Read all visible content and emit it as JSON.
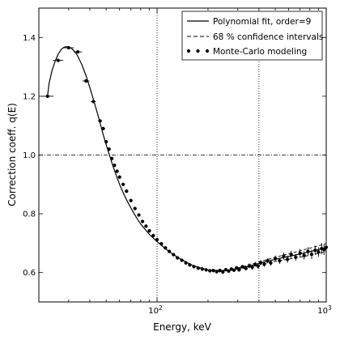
{
  "chart_data": {
    "type": "scatter",
    "xlabel": "Energy, keV",
    "ylabel": "Correction coeff. q(E)",
    "xscale": "log",
    "xlim": [
      20,
      1000
    ],
    "ylim": [
      0.5,
      1.5
    ],
    "x_major_ticks": [
      {
        "value": 100,
        "base": "10",
        "exp": "2"
      },
      {
        "value": 1000,
        "base": "10",
        "exp": "3"
      }
    ],
    "y_ticks": [
      0.6,
      0.8,
      1.0,
      1.2,
      1.4
    ],
    "y_tick_labels": [
      "0.6",
      "0.8",
      "1.0",
      "1.2",
      "1.4"
    ],
    "reference_lines": {
      "horizontal": [
        1.0
      ],
      "vertical": [
        100,
        400
      ]
    },
    "legend": {
      "placement": "top-right",
      "entries": [
        {
          "label": "Polynomial fit, order=9",
          "style": "solid"
        },
        {
          "label": "68 % confidence intervals",
          "style": "dashed"
        },
        {
          "label": "Monte-Carlo modeling",
          "style": "dots"
        }
      ]
    },
    "series": [
      {
        "style": "solid",
        "x": [
          22.5,
          23,
          24,
          25,
          26,
          27,
          28,
          29,
          30,
          31,
          32,
          33,
          34,
          36,
          38,
          40,
          42,
          45,
          48,
          50,
          55,
          60,
          65,
          70,
          75,
          80,
          90,
          100,
          110,
          120,
          140,
          160,
          180,
          200,
          220,
          250,
          280,
          300,
          350,
          400,
          450,
          500,
          600,
          700,
          800,
          900,
          1000
        ],
        "y": [
          1.2,
          1.245,
          1.29,
          1.32,
          1.343,
          1.358,
          1.366,
          1.369,
          1.368,
          1.364,
          1.357,
          1.348,
          1.336,
          1.306,
          1.27,
          1.23,
          1.19,
          1.13,
          1.07,
          1.035,
          0.96,
          0.9,
          0.855,
          0.82,
          0.79,
          0.765,
          0.73,
          0.705,
          0.685,
          0.668,
          0.643,
          0.626,
          0.616,
          0.609,
          0.607,
          0.607,
          0.61,
          0.613,
          0.622,
          0.631,
          0.639,
          0.645,
          0.655,
          0.663,
          0.671,
          0.678,
          0.685
        ]
      },
      {
        "style": "dashed",
        "x": [
          300,
          350,
          400,
          450,
          500,
          600,
          700,
          800,
          900,
          1000
        ],
        "y": [
          0.616,
          0.626,
          0.636,
          0.645,
          0.652,
          0.664,
          0.674,
          0.683,
          0.691,
          0.699
        ]
      },
      {
        "style": "dashed",
        "x": [
          300,
          350,
          400,
          450,
          500,
          600,
          700,
          800,
          900,
          1000
        ],
        "y": [
          0.61,
          0.618,
          0.626,
          0.633,
          0.638,
          0.646,
          0.652,
          0.659,
          0.665,
          0.671
        ]
      },
      {
        "style": "dots",
        "x": [
          22.5,
          26,
          30,
          34,
          38,
          42,
          46,
          48,
          50,
          52,
          54,
          56,
          58,
          60,
          63,
          66,
          70,
          74,
          78,
          82,
          86,
          90,
          95,
          100,
          106,
          112,
          118,
          125,
          132,
          140,
          148,
          156,
          165,
          175,
          185,
          195,
          205,
          215,
          225,
          235,
          245,
          255,
          265,
          275,
          285,
          295,
          305,
          320,
          335,
          350,
          365,
          380,
          395,
          410,
          430,
          450,
          470,
          500,
          530,
          560,
          590,
          620,
          660,
          700,
          740,
          780,
          820,
          860,
          900,
          940,
          970,
          1000
        ],
        "y": [
          1.2,
          1.322,
          1.365,
          1.351,
          1.252,
          1.182,
          1.116,
          1.09,
          1.045,
          1.02,
          0.988,
          0.965,
          0.945,
          0.925,
          0.9,
          0.877,
          0.845,
          0.818,
          0.796,
          0.774,
          0.758,
          0.742,
          0.726,
          0.712,
          0.698,
          0.684,
          0.672,
          0.661,
          0.65,
          0.642,
          0.633,
          0.626,
          0.62,
          0.615,
          0.612,
          0.609,
          0.606,
          0.607,
          0.603,
          0.607,
          0.602,
          0.61,
          0.605,
          0.612,
          0.608,
          0.616,
          0.609,
          0.62,
          0.614,
          0.623,
          0.618,
          0.628,
          0.622,
          0.634,
          0.628,
          0.64,
          0.633,
          0.648,
          0.64,
          0.656,
          0.645,
          0.662,
          0.652,
          0.666,
          0.658,
          0.672,
          0.662,
          0.676,
          0.67,
          0.682,
          0.678,
          0.686
        ],
        "xerr_log": [
          0.035,
          0.03,
          0.03,
          0.025,
          0.02,
          0.015,
          0.012,
          0.012,
          0.01,
          0.01,
          0.01,
          0.01,
          0.01,
          0.01,
          0.01,
          0.01,
          0.01,
          0.01,
          0.01,
          0.01,
          0.01,
          0.01,
          0.01,
          0.01,
          0.01,
          0.01,
          0.01,
          0.01,
          0.01,
          0.01,
          0.01,
          0.01,
          0.01,
          0.01,
          0.01,
          0.01,
          0.01,
          0.01,
          0.01,
          0.01,
          0.01,
          0.01,
          0.01,
          0.01,
          0.01,
          0.01,
          0.01,
          0.01,
          0.01,
          0.01,
          0.01,
          0.01,
          0.01,
          0.01,
          0.01,
          0.01,
          0.01,
          0.01,
          0.01,
          0.01,
          0.01,
          0.01,
          0.01,
          0.01,
          0.01,
          0.01,
          0.01,
          0.01,
          0.01,
          0.01,
          0.01,
          0.01
        ],
        "yerr": [
          0.004,
          0.004,
          0.004,
          0.004,
          0.006,
          0.006,
          0.006,
          0.006,
          0.006,
          0.006,
          0.006,
          0.006,
          0.006,
          0.006,
          0.006,
          0.006,
          0.006,
          0.006,
          0.006,
          0.006,
          0.006,
          0.006,
          0.006,
          0.006,
          0.006,
          0.006,
          0.006,
          0.006,
          0.006,
          0.006,
          0.006,
          0.006,
          0.006,
          0.006,
          0.006,
          0.006,
          0.006,
          0.006,
          0.006,
          0.006,
          0.006,
          0.006,
          0.006,
          0.006,
          0.006,
          0.006,
          0.006,
          0.006,
          0.006,
          0.008,
          0.008,
          0.008,
          0.008,
          0.008,
          0.008,
          0.008,
          0.01,
          0.01,
          0.01,
          0.012,
          0.012,
          0.012,
          0.012,
          0.014,
          0.014,
          0.014,
          0.016,
          0.016,
          0.016,
          0.018,
          0.018,
          0.018
        ]
      }
    ]
  }
}
